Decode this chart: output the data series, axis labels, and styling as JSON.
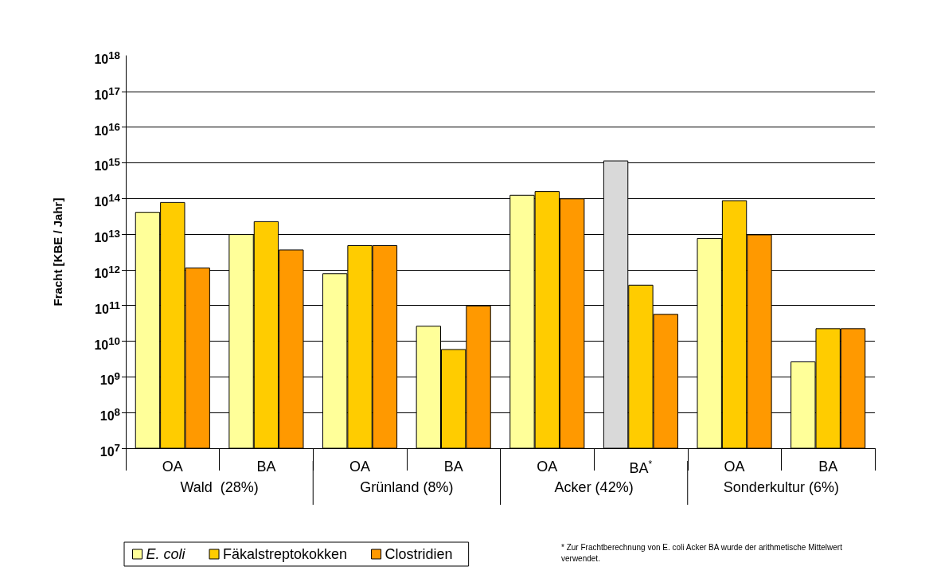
{
  "chart_data": {
    "type": "bar",
    "ylabel": "Fracht [KBE / Jahr]",
    "log": "y",
    "categories": [
      "OA",
      "BA",
      "OA",
      "BA",
      "OA",
      "BA$^{*}$",
      "OA",
      "BA"
    ],
    "series": [
      {
        "name": "E. coli",
        "color": "#ffff99",
        "colors": [
          "#ffff99",
          "#ffff99",
          "#ffff99",
          "#ffff99",
          "#ffff99",
          "#d9d9d9",
          "#ffff99",
          "#ffff99"
        ],
        "values": [
          42000000000000.0,
          10000000000000.0,
          800000000000.0,
          27000000000.0,
          126000000000000.0,
          1160000000000000.0,
          7800000000000.0,
          2700000000.0
        ]
      },
      {
        "name": "Fäkalstreptokokken",
        "color": "#ffcc00",
        "values": [
          79000000000000.0,
          23000000000000.0,
          4900000000000.0,
          6000000000.0,
          160000000000000.0,
          380000000000.0,
          89000000000000.0,
          23000000000.0
        ]
      },
      {
        "name": "Clostridien",
        "color": "#ff9900",
        "values": [
          1150000000000.0,
          3700000000000.0,
          4900000000000.0,
          100000000000.0,
          100000000000000.0,
          58000000000.0,
          9800000000000.0,
          23000000000.0
        ]
      }
    ],
    "ylim": [
      10000000.0,
      1e+18
    ],
    "yticks": [
      {
        "value": 10000000.0,
        "label": "10$^{7}$"
      },
      {
        "value": 100000000.0,
        "label": "10$^{8}$"
      },
      {
        "value": 1000000000.0,
        "label": "10$^{9}$"
      },
      {
        "value": 10000000000.0,
        "label": "10$^{10}$"
      },
      {
        "value": 100000000000.0,
        "label": "10$^{11}$"
      },
      {
        "value": 1000000000000.0,
        "label": "10$^{12}$"
      },
      {
        "value": 10000000000000.0,
        "label": "10$^{13}$"
      },
      {
        "value": 100000000000000.0,
        "label": "10$^{14}$"
      },
      {
        "value": 1000000000000000.0,
        "label": "10$^{15}$"
      },
      {
        "value": 1e+16,
        "label": "10$^{16}$"
      },
      {
        "value": 1e+17,
        "label": "10$^{17}$"
      },
      {
        "value": 1e+18,
        "label": "10$^{18}$"
      }
    ],
    "grid": "y",
    "legend": "bottom left",
    "annotations": [
      "Wald  (28%)",
      "Grünland (8%)",
      "Acker (42%)",
      "Sonderkultur (6%)",
      "* Zur Frachtberechnung von E. coli Acker BA wurde der arithmetische Mittelwert verwendet."
    ]
  }
}
